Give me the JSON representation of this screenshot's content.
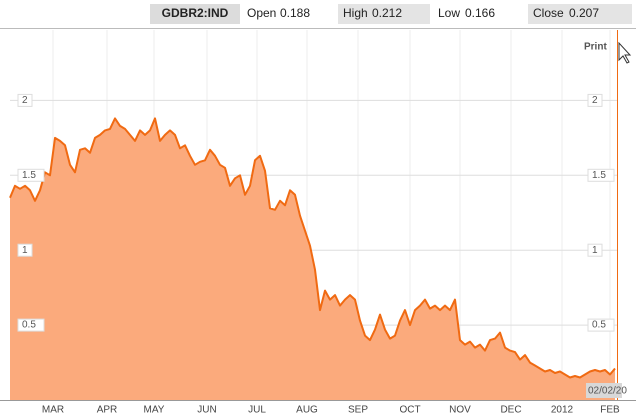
{
  "header": {
    "symbol": "GDBR2:IND",
    "open": {
      "label": "Open",
      "value": 0.188
    },
    "high": {
      "label": "High",
      "value": 0.212
    },
    "low": {
      "label": "Low",
      "value": 0.166
    },
    "close": {
      "label": "Close",
      "value": 0.207
    },
    "print": "Print",
    "date_label": "02/02/20"
  },
  "chart_data": {
    "type": "area",
    "color": "#f06a12",
    "fill": "#fbaa7c",
    "values": [
      1.35,
      1.43,
      1.41,
      1.43,
      1.4,
      1.33,
      1.4,
      1.52,
      1.5,
      1.75,
      1.73,
      1.7,
      1.57,
      1.52,
      1.67,
      1.68,
      1.65,
      1.75,
      1.77,
      1.8,
      1.81,
      1.88,
      1.83,
      1.81,
      1.77,
      1.73,
      1.8,
      1.77,
      1.8,
      1.88,
      1.73,
      1.77,
      1.8,
      1.77,
      1.68,
      1.7,
      1.63,
      1.57,
      1.59,
      1.6,
      1.67,
      1.63,
      1.57,
      1.55,
      1.43,
      1.48,
      1.5,
      1.37,
      1.43,
      1.6,
      1.63,
      1.53,
      1.28,
      1.27,
      1.33,
      1.3,
      1.4,
      1.37,
      1.23,
      1.13,
      1.03,
      0.87,
      0.6,
      0.73,
      0.67,
      0.7,
      0.63,
      0.67,
      0.7,
      0.67,
      0.53,
      0.43,
      0.4,
      0.47,
      0.57,
      0.47,
      0.41,
      0.43,
      0.53,
      0.6,
      0.5,
      0.6,
      0.63,
      0.67,
      0.61,
      0.63,
      0.6,
      0.63,
      0.6,
      0.67,
      0.4,
      0.37,
      0.39,
      0.35,
      0.37,
      0.33,
      0.4,
      0.41,
      0.45,
      0.35,
      0.33,
      0.32,
      0.27,
      0.3,
      0.25,
      0.23,
      0.21,
      0.19,
      0.2,
      0.18,
      0.19,
      0.17,
      0.15,
      0.16,
      0.15,
      0.17,
      0.19,
      0.2,
      0.19,
      0.2,
      0.17,
      0.21
    ],
    "xlim": [
      0,
      121.4
    ],
    "xticks": [
      {
        "value": 8.6,
        "label": "MAR"
      },
      {
        "value": 19.4,
        "label": "APR"
      },
      {
        "value": 28.8,
        "label": "MAY"
      },
      {
        "value": 39.4,
        "label": "JUN"
      },
      {
        "value": 49.4,
        "label": "JUL"
      },
      {
        "value": 59.4,
        "label": "AUG"
      },
      {
        "value": 69.6,
        "label": "SEP"
      },
      {
        "value": 80,
        "label": "OCT"
      },
      {
        "value": 90,
        "label": "NOV"
      },
      {
        "value": 100.2,
        "label": "DEC"
      },
      {
        "value": 110.4,
        "label": "2012"
      },
      {
        "value": 120,
        "label": "FEB"
      }
    ],
    "ylim": [
      0,
      2.47
    ],
    "yticks": [
      0.5,
      1,
      1.5,
      2
    ],
    "grid": true
  }
}
